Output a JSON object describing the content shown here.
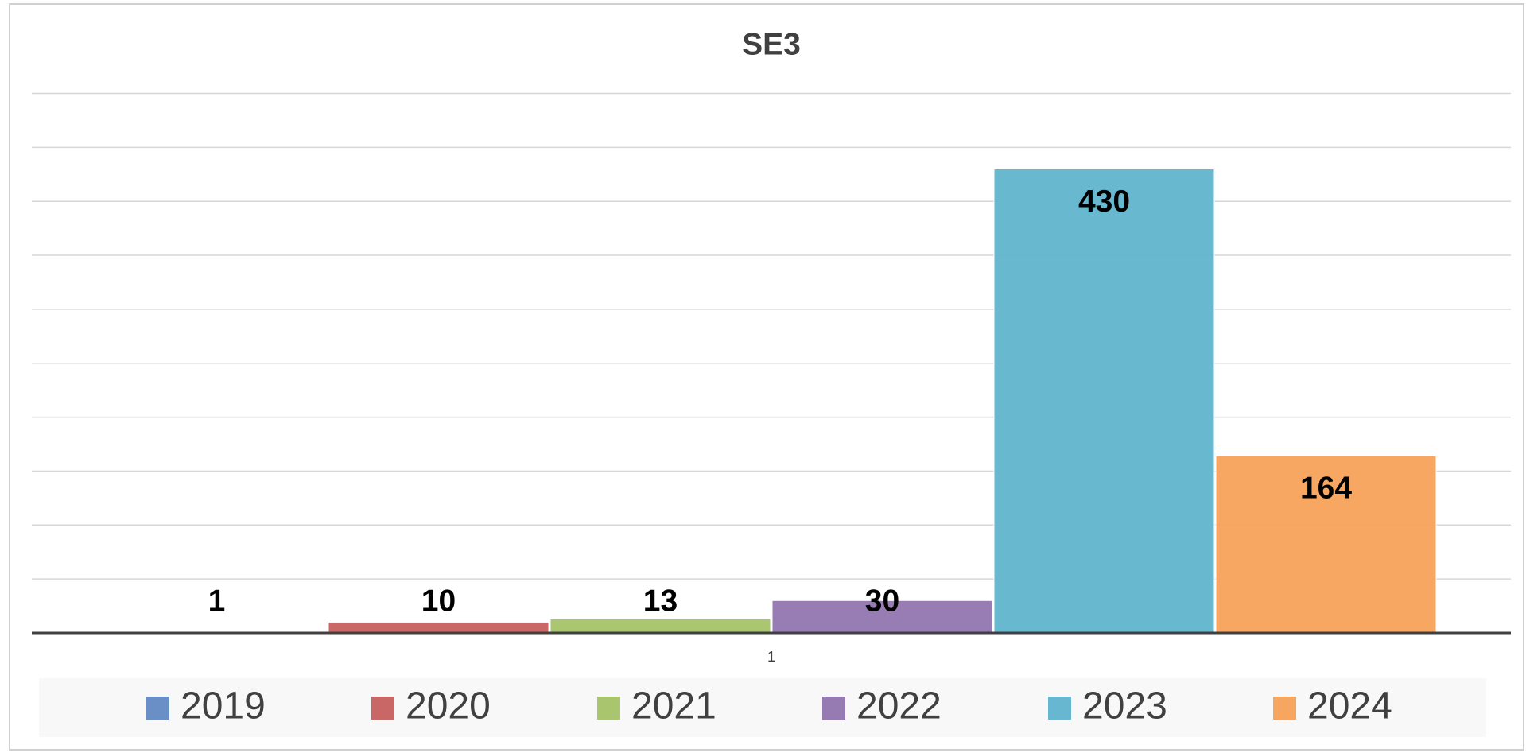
{
  "chart_data": {
    "type": "bar",
    "title": "SE3",
    "categories": [
      "1"
    ],
    "series": [
      {
        "name": "2019",
        "color": "#6a8fc6",
        "values": [
          1
        ]
      },
      {
        "name": "2020",
        "color": "#c96666",
        "values": [
          10
        ]
      },
      {
        "name": "2021",
        "color": "#a9c56e",
        "values": [
          13
        ]
      },
      {
        "name": "2022",
        "color": "#957bb2",
        "values": [
          30
        ]
      },
      {
        "name": "2023",
        "color": "#66b7cf",
        "values": [
          430
        ]
      },
      {
        "name": "2024",
        "color": "#f7a65f",
        "values": [
          164
        ]
      }
    ],
    "ylim": [
      0,
      500
    ],
    "yticks": [
      0,
      50,
      100,
      150,
      200,
      250,
      300,
      350,
      400,
      450,
      500
    ],
    "grid": true,
    "legend": "bottom"
  }
}
